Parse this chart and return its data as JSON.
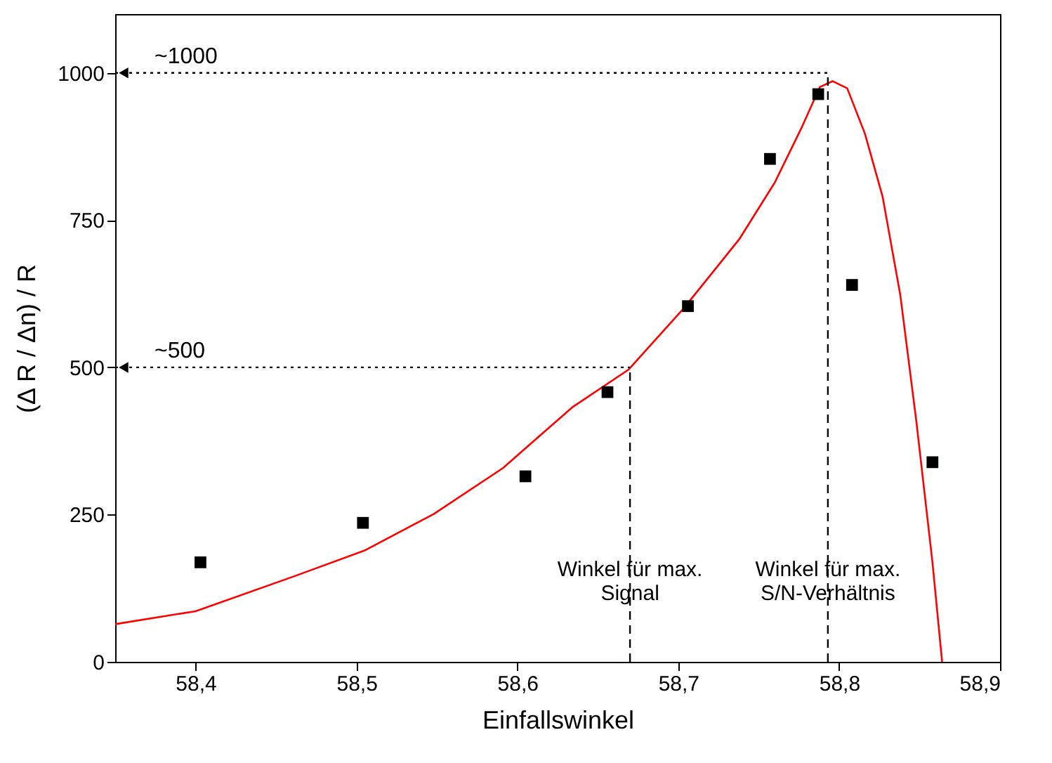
{
  "chart_data": {
    "type": "scatter",
    "xlabel": "Einfallswinkel",
    "ylabel": "(Δ R / Δn) / R",
    "xlim": [
      58.35,
      58.9
    ],
    "xticks": [
      {
        "value": 58.4,
        "label": "58,4"
      },
      {
        "value": 58.5,
        "label": "58,5"
      },
      {
        "value": 58.6,
        "label": "58,6"
      },
      {
        "value": 58.7,
        "label": "58,7"
      },
      {
        "value": 58.8,
        "label": "58,8"
      },
      {
        "value": 58.9,
        "label": "58,9"
      }
    ],
    "ylim": [
      0,
      1100
    ],
    "yticks": [
      0,
      250,
      500,
      750,
      1000
    ],
    "grid": false,
    "series": [
      {
        "type": "line",
        "color": "#ff0000",
        "marker": "none",
        "line_style": "solid",
        "x": [
          58.35,
          58.4,
          58.462,
          58.505,
          58.548,
          58.591,
          58.634,
          58.669,
          58.703,
          58.738,
          58.76,
          58.777,
          58.788,
          58.796,
          58.805,
          58.816,
          58.827,
          58.838,
          58.848,
          58.858,
          58.864
        ],
        "values": [
          64,
          86,
          146,
          189,
          251,
          329,
          432,
          496,
          599,
          718,
          814,
          909,
          976,
          986,
          974,
          897,
          790,
          623,
          408,
          169,
          0
        ]
      },
      {
        "type": "scatter",
        "color": "#000000",
        "marker": "square",
        "x": [
          58.403,
          58.504,
          58.605,
          58.656,
          58.706,
          58.757,
          58.787,
          58.808,
          58.858
        ],
        "values": [
          169,
          236,
          315,
          458,
          604,
          854,
          964,
          640,
          339
        ]
      }
    ],
    "ref_lines": [
      {
        "axis": "y",
        "value": 1000,
        "label": "~1000",
        "line_style": "dotted",
        "color": "#000000"
      },
      {
        "axis": "y",
        "value": 500,
        "label": "~500",
        "line_style": "dotted",
        "color": "#000000"
      },
      {
        "axis": "x",
        "value": 58.793,
        "label": "Winkel für max.\nS/N-Verhältnis",
        "line_style": "dashed",
        "color": "#000000"
      },
      {
        "axis": "x",
        "value": 58.67,
        "label": "Winkel für max.\nSignal",
        "line_style": "dashed",
        "color": "#000000"
      }
    ]
  }
}
